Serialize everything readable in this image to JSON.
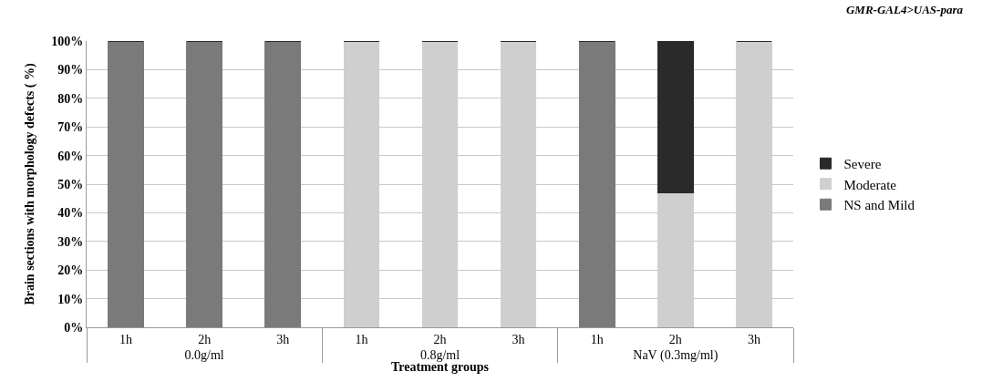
{
  "chart_data": {
    "type": "bar",
    "title": "GMR-GAL4>UAS-para",
    "xlabel": "Treatment groups",
    "ylabel": "Brain sections with morphology defects ( %)",
    "categories": [
      "1h",
      "2h",
      "3h",
      "1h",
      "2h",
      "3h",
      "1h",
      "2h",
      "3h"
    ],
    "annotations": [
      "0.0g/ml",
      "0.8g/ml",
      "NaV (0.3mg/ml)"
    ],
    "stacked": true,
    "series": [
      {
        "name": "NS and Mild",
        "color": "#7a7a7a",
        "values": [
          100,
          100,
          100,
          0,
          0,
          0,
          100,
          0,
          0
        ]
      },
      {
        "name": "Moderate",
        "color": "#cfcfcf",
        "values": [
          0,
          0,
          0,
          100,
          100,
          100,
          0,
          47,
          100
        ]
      },
      {
        "name": "Severe",
        "color": "#2a2a2a",
        "values": [
          0,
          0,
          0,
          0,
          0,
          0,
          0,
          53,
          0
        ]
      }
    ],
    "ylim": [
      0,
      100
    ],
    "yticks": [
      {
        "value": 0,
        "label": "0%"
      },
      {
        "value": 10,
        "label": "10%"
      },
      {
        "value": 20,
        "label": "20%"
      },
      {
        "value": 30,
        "label": "30%"
      },
      {
        "value": 40,
        "label": "40%"
      },
      {
        "value": 50,
        "label": "50%"
      },
      {
        "value": 60,
        "label": "60%"
      },
      {
        "value": 70,
        "label": "70%"
      },
      {
        "value": 80,
        "label": "80%"
      },
      {
        "value": 90,
        "label": "90%"
      },
      {
        "value": 100,
        "label": "100%"
      }
    ],
    "grid": "y",
    "legend": "right"
  }
}
